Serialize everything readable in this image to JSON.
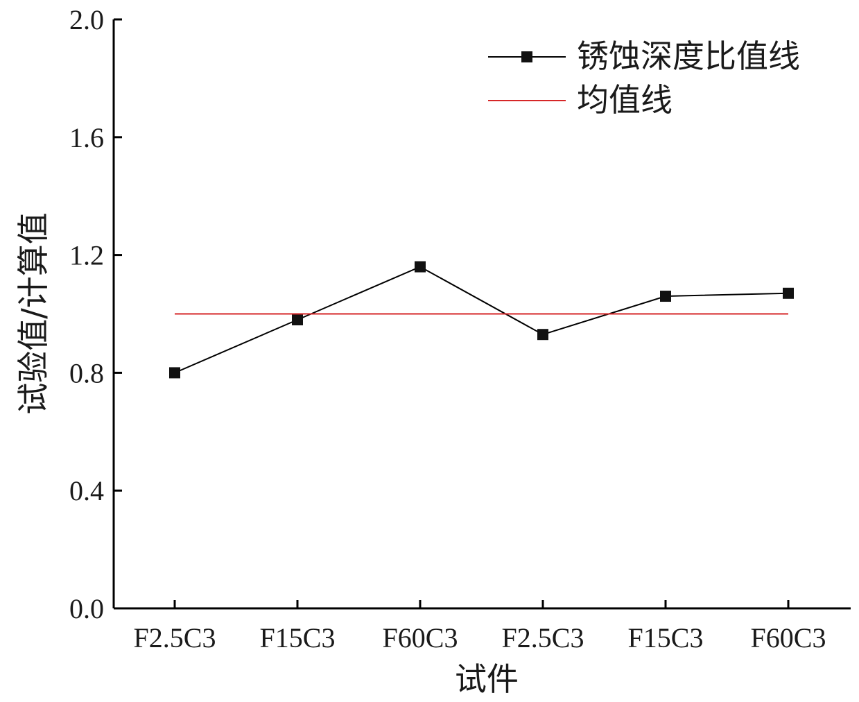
{
  "chart_data": {
    "type": "line",
    "categories": [
      "F2.5C3",
      "F15C3",
      "F60C3",
      "F2.5C3",
      "F15C3",
      "F60C3"
    ],
    "series": [
      {
        "name": "锈蚀深度比值线",
        "values": [
          0.8,
          0.98,
          1.16,
          0.93,
          1.06,
          1.07
        ],
        "color": "#000000",
        "marker": "square"
      },
      {
        "name": "均值线",
        "values": [
          1.0,
          1.0,
          1.0,
          1.0,
          1.0,
          1.0
        ],
        "color": "#d62728",
        "marker": "none"
      }
    ],
    "xlabel": "试件",
    "ylabel": "试验值/计算值",
    "ylim": [
      0.0,
      2.0
    ],
    "yticks": [
      "0.0",
      "0.4",
      "0.8",
      "1.2",
      "1.6",
      "2.0"
    ],
    "grid": false,
    "legend_position": "top-right"
  }
}
